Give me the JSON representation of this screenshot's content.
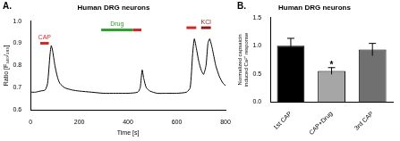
{
  "chart_data": [
    {
      "type": "line",
      "panel": "A.",
      "title": "Human DRG neurons",
      "x_label": "Time [s]",
      "y_label": "Ratio [F₃₄₀/₃₈₀]",
      "x": [
        0,
        20,
        40,
        60,
        70,
        80,
        85,
        90,
        100,
        110,
        120,
        140,
        170,
        200,
        250,
        300,
        350,
        400,
        440,
        450,
        458,
        465,
        475,
        490,
        520,
        560,
        600,
        640,
        655,
        665,
        672,
        680,
        690,
        700,
        710,
        720,
        728,
        735,
        745,
        760,
        775,
        790,
        800
      ],
      "values": [
        0.68,
        0.68,
        0.685,
        0.69,
        0.72,
        0.85,
        0.89,
        0.87,
        0.8,
        0.75,
        0.72,
        0.7,
        0.69,
        0.685,
        0.68,
        0.675,
        0.675,
        0.675,
        0.68,
        0.7,
        0.78,
        0.74,
        0.7,
        0.685,
        0.675,
        0.675,
        0.675,
        0.68,
        0.7,
        0.85,
        0.92,
        0.88,
        0.82,
        0.78,
        0.76,
        0.8,
        0.9,
        0.92,
        0.88,
        0.8,
        0.75,
        0.72,
        0.71
      ],
      "color": "#000000",
      "xlim": [
        0,
        800
      ],
      "xticks": [
        0,
        200,
        400,
        600,
        800
      ],
      "ylim": [
        0.6,
        1.0
      ],
      "yticks": [
        0.6,
        0.7,
        0.8,
        0.9,
        {
          "value": 1,
          "label": "1.0"
        }
      ],
      "grid": false,
      "annotations": [
        {
          "text": "CAP",
          "x": [
            40,
            75
          ],
          "y": 0.9,
          "color": "#d62728"
        },
        {
          "text": "Drug",
          "x": [
            290,
            420
          ],
          "y": 0.96,
          "color": "#2ca02c"
        },
        {
          "x": [
            420,
            455
          ],
          "y": 0.96,
          "color": "#d62728"
        },
        {
          "x": [
            640,
            680
          ],
          "y": 0.97,
          "color": "#d62728"
        },
        {
          "text": "KCl",
          "x": [
            700,
            740
          ],
          "y": 0.97,
          "color": "#8b1a1a"
        }
      ]
    },
    {
      "type": "bar",
      "panel": "B.",
      "title": "Human DRG neurons",
      "y_label": "Normalized capsaicin induced Ca²⁺ response",
      "categories": [
        "1st CAP",
        "CAP+Drug",
        "3rd CAP"
      ],
      "values": [
        1.0,
        0.55,
        0.93
      ],
      "errors": [
        0.13,
        0.06,
        0.11
      ],
      "colors": [
        "#000000",
        "#a6a6a6",
        "#707070"
      ],
      "ylim": [
        0,
        1.5
      ],
      "yticks": [
        {
          "value": 0,
          "label": "0.0"
        },
        0.5,
        {
          "value": 1,
          "label": "1.0"
        },
        1.5
      ],
      "grid": false,
      "annotations": [
        {
          "text": "*",
          "category": "CAP+Drug"
        }
      ]
    }
  ]
}
